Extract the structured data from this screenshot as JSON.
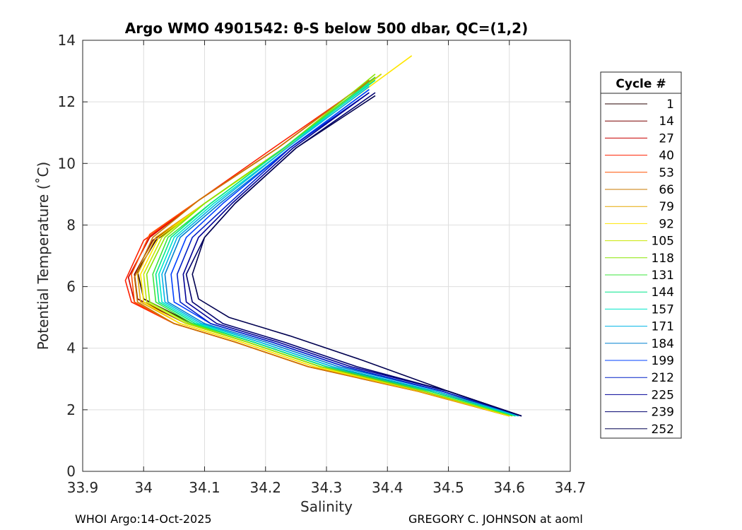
{
  "chart_data": {
    "type": "line",
    "title": "Argo WMO 4901542: θ-S below 500 dbar,  QC=(1,2)",
    "xlabel": "Salinity",
    "ylabel": "Potential Temperature (˚C)",
    "xlim": [
      33.9,
      34.7
    ],
    "ylim": [
      0,
      14
    ],
    "xticks": [
      33.9,
      34.0,
      34.1,
      34.2,
      34.3,
      34.4,
      34.5,
      34.6,
      34.7
    ],
    "xticklabels": [
      "33.9",
      "34",
      "34.1",
      "34.2",
      "34.3",
      "34.4",
      "34.5",
      "34.6",
      "34.7"
    ],
    "yticks": [
      0,
      2,
      4,
      6,
      8,
      10,
      12,
      14
    ],
    "yticklabels": [
      "0",
      "2",
      "4",
      "6",
      "8",
      "10",
      "12",
      "14"
    ],
    "grid": true,
    "legend": {
      "title": "Cycle #",
      "placement": "right-outside",
      "entries": [
        {
          "label": "1",
          "color": "#2a0000"
        },
        {
          "label": "14",
          "color": "#7a0000"
        },
        {
          "label": "27",
          "color": "#c80000"
        },
        {
          "label": "40",
          "color": "#ff2000"
        },
        {
          "label": "53",
          "color": "#ff5000"
        },
        {
          "label": "66",
          "color": "#c87800"
        },
        {
          "label": "79",
          "color": "#e6a800"
        },
        {
          "label": "92",
          "color": "#ffe600"
        },
        {
          "label": "105",
          "color": "#c8e600"
        },
        {
          "label": "118",
          "color": "#8ae600"
        },
        {
          "label": "131",
          "color": "#3ce63c"
        },
        {
          "label": "144",
          "color": "#00e68c"
        },
        {
          "label": "157",
          "color": "#00e6c8"
        },
        {
          "label": "171",
          "color": "#00b4e6"
        },
        {
          "label": "184",
          "color": "#0080d0"
        },
        {
          "label": "199",
          "color": "#0040ff"
        },
        {
          "label": "212",
          "color": "#0020c8"
        },
        {
          "label": "225",
          "color": "#000096"
        },
        {
          "label": "239",
          "color": "#00006e"
        },
        {
          "label": "252",
          "color": "#000050"
        }
      ]
    },
    "series": [
      {
        "name": "1",
        "color": "#2a0000",
        "x": [
          34.62,
          34.48,
          34.3,
          34.18,
          34.08,
          34.0,
          33.99,
          34.02,
          34.1,
          34.23,
          34.39
        ],
        "y": [
          1.8,
          2.6,
          3.4,
          4.2,
          4.8,
          5.6,
          6.5,
          7.5,
          8.7,
          10.5,
          12.9
        ]
      },
      {
        "name": "14",
        "color": "#7a0000",
        "x": [
          34.615,
          34.47,
          34.29,
          34.17,
          34.07,
          33.99,
          33.985,
          34.015,
          34.1,
          34.23,
          34.38
        ],
        "y": [
          1.8,
          2.6,
          3.4,
          4.2,
          4.8,
          5.6,
          6.4,
          7.5,
          8.7,
          10.5,
          12.8
        ]
      },
      {
        "name": "27",
        "color": "#c80000",
        "x": [
          34.6,
          34.45,
          34.27,
          34.15,
          34.05,
          33.985,
          33.975,
          34.01,
          34.09,
          34.22,
          34.37
        ],
        "y": [
          1.8,
          2.6,
          3.4,
          4.2,
          4.8,
          5.5,
          6.3,
          7.6,
          8.8,
          10.5,
          12.7
        ]
      },
      {
        "name": "40",
        "color": "#ff2000",
        "x": [
          34.6,
          34.45,
          34.27,
          34.15,
          34.05,
          33.98,
          33.97,
          34.0,
          34.09,
          34.22,
          34.38
        ],
        "y": [
          1.8,
          2.6,
          3.4,
          4.2,
          4.8,
          5.5,
          6.2,
          7.5,
          8.8,
          10.6,
          12.8
        ]
      },
      {
        "name": "53",
        "color": "#ff5000",
        "x": [
          34.6,
          34.45,
          34.27,
          34.15,
          34.05,
          33.985,
          33.98,
          34.01,
          34.09,
          34.22,
          34.37
        ],
        "y": [
          1.8,
          2.6,
          3.4,
          4.2,
          4.8,
          5.5,
          6.4,
          7.7,
          8.8,
          10.5,
          12.7
        ]
      },
      {
        "name": "66",
        "color": "#c87800",
        "x": [
          34.6,
          34.45,
          34.27,
          34.15,
          34.05,
          33.99,
          33.985,
          34.015,
          34.09,
          34.22,
          34.37
        ],
        "y": [
          1.8,
          2.6,
          3.4,
          4.2,
          4.8,
          5.5,
          6.3,
          7.6,
          8.8,
          10.5,
          12.7
        ]
      },
      {
        "name": "79",
        "color": "#e6a800",
        "x": [
          34.6,
          34.45,
          34.28,
          34.16,
          34.06,
          33.995,
          33.99,
          34.02,
          34.1,
          34.23,
          34.39
        ],
        "y": [
          1.8,
          2.6,
          3.4,
          4.2,
          4.8,
          5.5,
          6.4,
          7.6,
          8.7,
          10.5,
          12.9
        ]
      },
      {
        "name": "92",
        "color": "#ffe600",
        "x": [
          34.6,
          34.46,
          34.28,
          34.16,
          34.06,
          34.0,
          33.995,
          34.025,
          34.1,
          34.24,
          34.44
        ],
        "y": [
          1.8,
          2.6,
          3.4,
          4.2,
          4.8,
          5.5,
          6.4,
          7.6,
          8.7,
          10.6,
          13.5
        ]
      },
      {
        "name": "105",
        "color": "#c8e600",
        "x": [
          34.605,
          34.46,
          34.29,
          34.17,
          34.07,
          34.005,
          34.0,
          34.03,
          34.1,
          34.23,
          34.39
        ],
        "y": [
          1.8,
          2.6,
          3.4,
          4.2,
          4.8,
          5.5,
          6.4,
          7.6,
          8.7,
          10.5,
          12.9
        ]
      },
      {
        "name": "118",
        "color": "#8ae600",
        "x": [
          34.605,
          34.46,
          34.29,
          34.17,
          34.075,
          34.01,
          34.005,
          34.035,
          34.1,
          34.23,
          34.38
        ],
        "y": [
          1.8,
          2.6,
          3.4,
          4.2,
          4.8,
          5.5,
          6.4,
          7.6,
          8.7,
          10.5,
          12.9
        ]
      },
      {
        "name": "131",
        "color": "#3ce63c",
        "x": [
          34.61,
          34.47,
          34.3,
          34.18,
          34.08,
          34.02,
          34.015,
          34.04,
          34.11,
          34.23,
          34.38
        ],
        "y": [
          1.8,
          2.6,
          3.4,
          4.2,
          4.8,
          5.5,
          6.4,
          7.6,
          8.7,
          10.5,
          12.8
        ]
      },
      {
        "name": "144",
        "color": "#00e68c",
        "x": [
          34.61,
          34.47,
          34.3,
          34.18,
          34.085,
          34.025,
          34.02,
          34.045,
          34.11,
          34.23,
          34.38
        ],
        "y": [
          1.8,
          2.6,
          3.4,
          4.2,
          4.8,
          5.5,
          6.4,
          7.6,
          8.7,
          10.5,
          12.7
        ]
      },
      {
        "name": "157",
        "color": "#00e6c8",
        "x": [
          34.615,
          34.48,
          34.31,
          34.19,
          34.09,
          34.03,
          34.025,
          34.05,
          34.115,
          34.235,
          34.37
        ],
        "y": [
          1.8,
          2.6,
          3.4,
          4.2,
          4.8,
          5.5,
          6.4,
          7.6,
          8.7,
          10.5,
          12.6
        ]
      },
      {
        "name": "171",
        "color": "#00b4e6",
        "x": [
          34.615,
          34.48,
          34.31,
          34.19,
          34.095,
          34.035,
          34.03,
          34.055,
          34.12,
          34.235,
          34.37
        ],
        "y": [
          1.8,
          2.6,
          3.4,
          4.2,
          4.8,
          5.5,
          6.4,
          7.6,
          8.7,
          10.5,
          12.5
        ]
      },
      {
        "name": "184",
        "color": "#0080d0",
        "x": [
          34.62,
          34.49,
          34.32,
          34.2,
          34.1,
          34.04,
          34.035,
          34.06,
          34.125,
          34.24,
          34.37
        ],
        "y": [
          1.8,
          2.6,
          3.4,
          4.2,
          4.8,
          5.5,
          6.4,
          7.6,
          8.7,
          10.5,
          12.4
        ]
      },
      {
        "name": "199",
        "color": "#0040ff",
        "x": [
          34.62,
          34.49,
          34.33,
          34.21,
          34.11,
          34.05,
          34.045,
          34.07,
          34.13,
          34.24,
          34.37
        ],
        "y": [
          1.8,
          2.6,
          3.4,
          4.2,
          4.8,
          5.5,
          6.4,
          7.6,
          8.7,
          10.5,
          12.4
        ]
      },
      {
        "name": "212",
        "color": "#0020c8",
        "x": [
          34.62,
          34.49,
          34.33,
          34.21,
          34.11,
          34.06,
          34.055,
          34.08,
          34.14,
          34.24,
          34.37
        ],
        "y": [
          1.8,
          2.6,
          3.4,
          4.2,
          4.8,
          5.5,
          6.4,
          7.6,
          8.7,
          10.5,
          12.3
        ]
      },
      {
        "name": "225",
        "color": "#000096",
        "x": [
          34.62,
          34.5,
          34.34,
          34.22,
          34.12,
          34.07,
          34.065,
          34.09,
          34.145,
          34.245,
          34.37
        ],
        "y": [
          1.8,
          2.6,
          3.4,
          4.2,
          4.8,
          5.5,
          6.4,
          7.6,
          8.7,
          10.5,
          12.3
        ]
      },
      {
        "name": "239",
        "color": "#00006e",
        "x": [
          34.62,
          34.5,
          34.35,
          34.23,
          34.13,
          34.08,
          34.07,
          34.1,
          34.15,
          34.25,
          34.38
        ],
        "y": [
          1.8,
          2.6,
          3.4,
          4.2,
          4.8,
          5.5,
          6.4,
          7.6,
          8.7,
          10.5,
          12.3
        ]
      },
      {
        "name": "252",
        "color": "#000050",
        "x": [
          34.62,
          34.5,
          34.36,
          34.24,
          34.14,
          34.09,
          34.08,
          34.1,
          34.15,
          34.25,
          34.38
        ],
        "y": [
          1.8,
          2.6,
          3.6,
          4.4,
          5.0,
          5.6,
          6.4,
          7.6,
          8.7,
          10.5,
          12.2
        ]
      }
    ]
  },
  "footer": {
    "left": "WHOI Argo:14-Oct-2025",
    "right": "GREGORY C. JOHNSON at aoml"
  }
}
